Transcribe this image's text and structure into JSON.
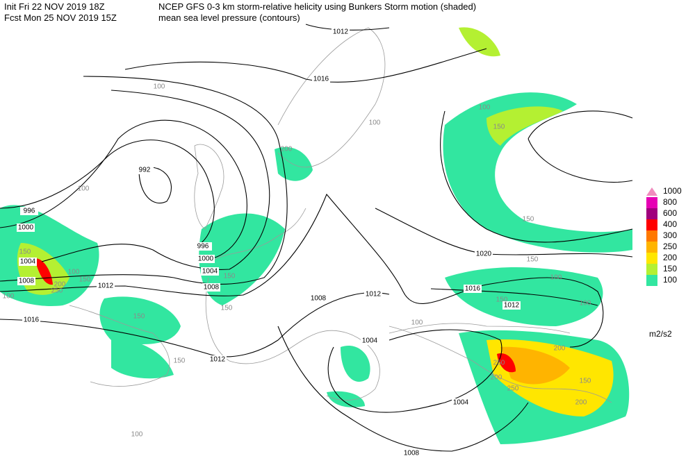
{
  "header": {
    "line1_left": "Init  Fri 22 NOV 2019 18Z",
    "line1_right": "NCEP GFS 0-3 km storm-relative helicity using Bunkers Storm motion (shaded)",
    "line2_left": "Fcst Mon 25 NOV 2019 15Z",
    "line2_right": "mean sea level pressure (contours)"
  },
  "legend": {
    "levels": [
      {
        "label": "1000",
        "color": "#f08cbe"
      },
      {
        "label": "800",
        "color": "#e600b4"
      },
      {
        "label": "600",
        "color": "#a0007d"
      },
      {
        "label": "400",
        "color": "#ff0000"
      },
      {
        "label": "300",
        "color": "#ff7800"
      },
      {
        "label": "250",
        "color": "#ffb400"
      },
      {
        "label": "200",
        "color": "#ffe600"
      },
      {
        "label": "150",
        "color": "#b4f032"
      },
      {
        "label": "100",
        "color": "#32e6a0"
      }
    ],
    "units": "m2/s2"
  },
  "contour_labels": [
    "1012",
    "1016",
    "992",
    "996",
    "1000",
    "996",
    "1000",
    "1004",
    "1008",
    "1004",
    "1008",
    "1012",
    "1016",
    "1012",
    "1008",
    "1012",
    "1004",
    "1004",
    "1008",
    "1020",
    "1016",
    "1012"
  ],
  "shading_labels": [
    "100",
    "100",
    "150",
    "100",
    "200",
    "100",
    "150",
    "200",
    "250",
    "100",
    "150",
    "150",
    "150",
    "150",
    "150",
    "100",
    "150",
    "150",
    "200",
    "250",
    "200",
    "250",
    "150",
    "200",
    "100",
    "100",
    "150",
    "100",
    "100"
  ]
}
